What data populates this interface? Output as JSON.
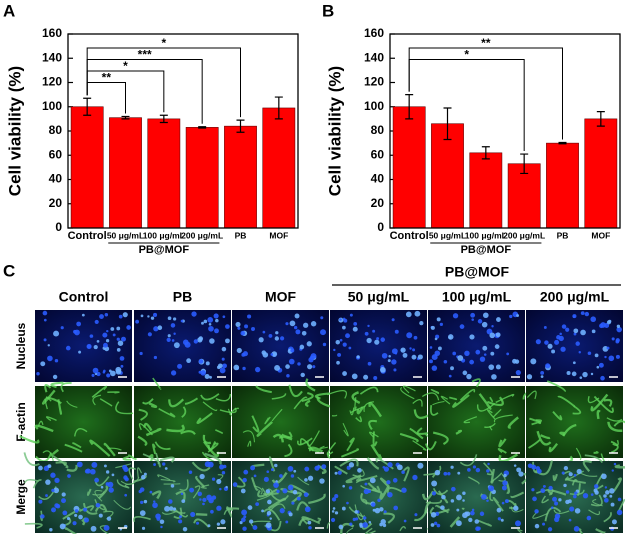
{
  "chart_data": [
    {
      "type": "bar",
      "panel_label": "A",
      "ylabel": "Cell viability (%)",
      "categories": [
        "Control",
        "50 μg/mL",
        "100 μg/mL",
        "200 μg/mL",
        "PB",
        "MOF"
      ],
      "values": [
        100,
        91,
        90,
        83,
        84,
        99
      ],
      "errors": [
        7,
        1,
        3,
        0.5,
        5,
        9
      ],
      "group_label": "PB@MOF",
      "color": "#ff0000",
      "ylim": [
        0,
        160
      ],
      "yticks": [
        0,
        20,
        40,
        60,
        80,
        100,
        120,
        140,
        160
      ],
      "annotations": [
        {
          "label": "**",
          "between": [
            0,
            1
          ]
        },
        {
          "label": "*",
          "between": [
            0,
            2
          ]
        },
        {
          "label": "***",
          "between": [
            0,
            3
          ]
        },
        {
          "label": "*",
          "between": [
            0,
            4
          ]
        }
      ]
    },
    {
      "type": "bar",
      "panel_label": "B",
      "ylabel": "Cell viability (%)",
      "categories": [
        "Control",
        "50 μg/mL",
        "100 μg/mL",
        "200 μg/mL",
        "PB",
        "MOF"
      ],
      "values": [
        100,
        86,
        62,
        53,
        70,
        90
      ],
      "errors": [
        10,
        13,
        5,
        8,
        0.5,
        6
      ],
      "group_label": "PB@MOF",
      "color": "#ff0000",
      "ylim": [
        0,
        160
      ],
      "yticks": [
        0,
        20,
        40,
        60,
        80,
        100,
        120,
        140,
        160
      ],
      "annotations": [
        {
          "label": "*",
          "between": [
            0,
            3
          ]
        },
        {
          "label": "**",
          "between": [
            0,
            4
          ]
        }
      ]
    }
  ],
  "panel_c": {
    "panel_label": "C",
    "group_label": "PB@MOF",
    "columns": [
      "Control",
      "PB",
      "MOF",
      "50 μg/mL",
      "100 μg/mL",
      "200 μg/mL"
    ],
    "rows": [
      "Nucleus",
      "F-actin",
      "Merge"
    ]
  }
}
